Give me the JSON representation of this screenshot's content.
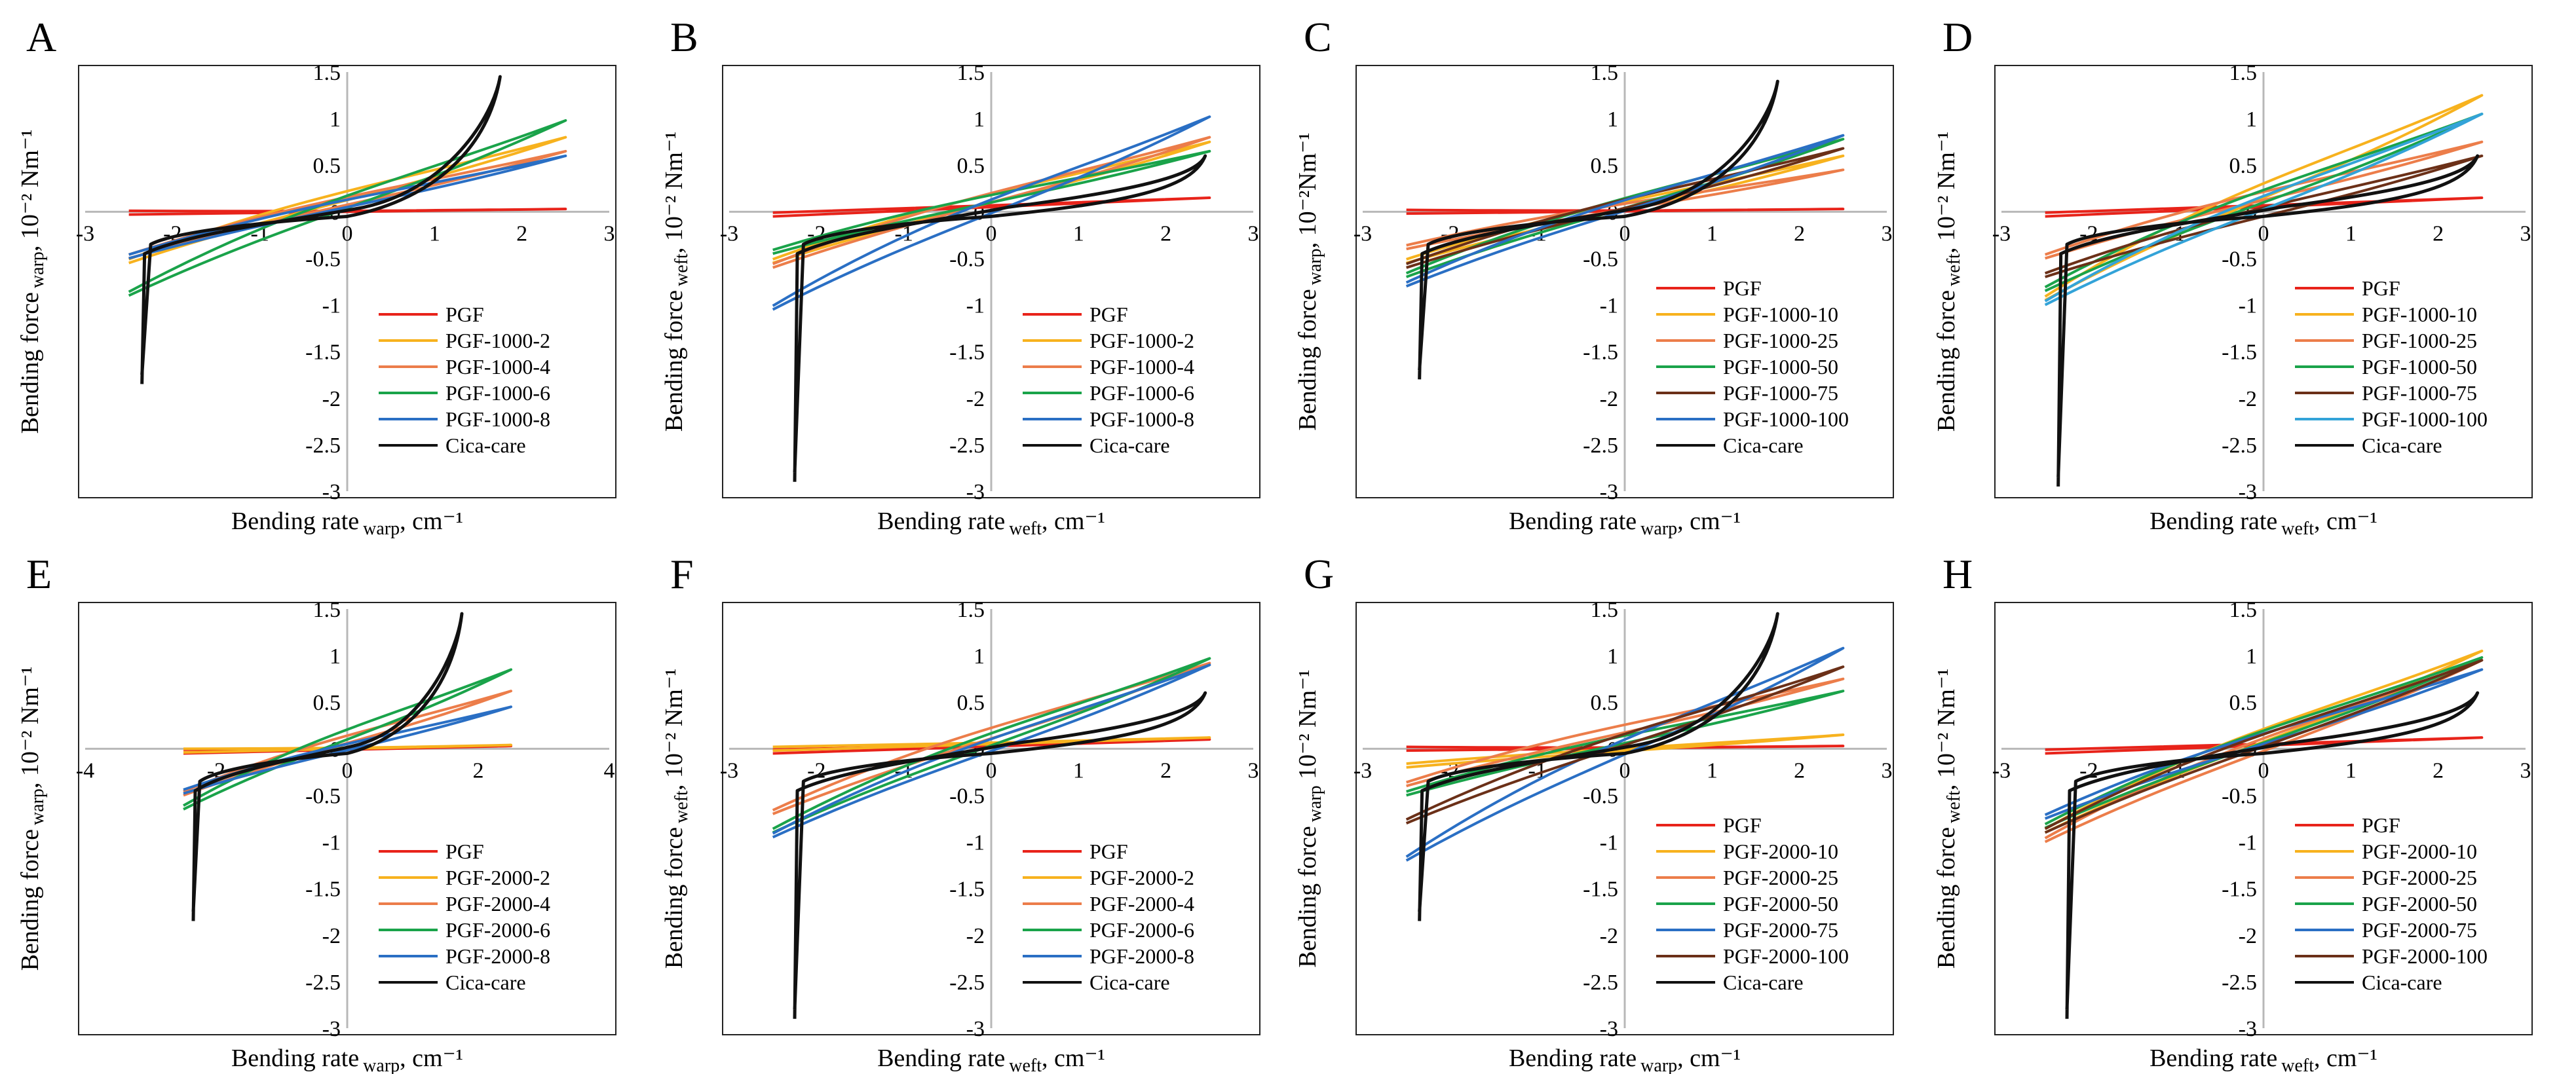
{
  "figure": {
    "note": ""
  },
  "colors": {
    "PGF": "#e8231a",
    "s2": "#f7b21e",
    "s3": "#ec7d4a",
    "s4": "#1aa34a",
    "s5": "#6b3018",
    "s6": "#2a6fc4",
    "s6b": "#33a3d8",
    "cica": "#111111",
    "axis": "#b8b8b8",
    "frame": "#222222"
  },
  "chart_data": [
    {
      "panel": "A",
      "type": "line",
      "xlabel_main": "Bending rate",
      "xlabel_sub": "warp",
      "xlabel_unit": ", cm⁻¹",
      "ylabel_main": "Bending force",
      "ylabel_sub": "warp",
      "ylabel_unit": ", 10⁻² Nm⁻¹",
      "xlim": [
        -3,
        3
      ],
      "ylim": [
        -3,
        1.5
      ],
      "x_ticks": [
        "-3",
        "-2",
        "-1",
        "0",
        "1",
        "2",
        "3"
      ],
      "y_ticks": [
        "1.5",
        "1",
        "0.5",
        "0",
        "-0.5",
        "-1",
        "-1.5",
        "-2",
        "-2.5",
        "-3"
      ],
      "series": [
        {
          "name": "PGF",
          "color_key": "PGF",
          "shape": "lin",
          "p": [
            -2.5,
            -0.03,
            2.5,
            0.03
          ]
        },
        {
          "name": "PGF-1000-2",
          "color_key": "s2",
          "shape": "lin",
          "p": [
            -2.5,
            -0.55,
            2.5,
            0.8
          ]
        },
        {
          "name": "PGF-1000-4",
          "color_key": "s3",
          "shape": "lin",
          "p": [
            -2.5,
            -0.5,
            2.5,
            0.65
          ]
        },
        {
          "name": "PGF-1000-6",
          "color_key": "s4",
          "shape": "lin",
          "p": [
            -2.5,
            -0.9,
            2.5,
            0.98
          ]
        },
        {
          "name": "PGF-1000-8",
          "color_key": "s6",
          "shape": "lin",
          "p": [
            -2.5,
            -0.5,
            2.5,
            0.6
          ]
        },
        {
          "name": "Cica-care",
          "color_key": "cica",
          "shape": "cica",
          "p": [
            -2.35,
            -1.85,
            1.75,
            1.45
          ]
        }
      ]
    },
    {
      "panel": "B",
      "type": "line",
      "xlabel_main": "Bending rate",
      "xlabel_sub": "weft",
      "xlabel_unit": ", cm⁻¹",
      "ylabel_main": "Bending force",
      "ylabel_sub": "weft",
      "ylabel_unit": ", 10⁻² Nm⁻¹",
      "xlim": [
        -3,
        3
      ],
      "ylim": [
        -3,
        1.5
      ],
      "x_ticks": [
        "-3",
        "-2",
        "-1",
        "0",
        "1",
        "2",
        "3"
      ],
      "y_ticks": [
        "1.5",
        "1",
        "0.5",
        "0",
        "-0.5",
        "-1",
        "-1.5",
        "-2",
        "-2.5",
        "-3"
      ],
      "series": [
        {
          "name": "PGF",
          "color_key": "PGF",
          "shape": "lin",
          "p": [
            -2.5,
            -0.05,
            2.5,
            0.15
          ]
        },
        {
          "name": "PGF-1000-2",
          "color_key": "s2",
          "shape": "lin",
          "p": [
            -2.5,
            -0.55,
            2.5,
            0.75
          ]
        },
        {
          "name": "PGF-1000-4",
          "color_key": "s3",
          "shape": "lin",
          "p": [
            -2.5,
            -0.6,
            2.5,
            0.8
          ]
        },
        {
          "name": "PGF-1000-6",
          "color_key": "s4",
          "shape": "lin",
          "p": [
            -2.5,
            -0.45,
            2.5,
            0.65
          ]
        },
        {
          "name": "PGF-1000-8",
          "color_key": "s6",
          "shape": "lin",
          "p": [
            -2.5,
            -1.05,
            2.5,
            1.02
          ]
        },
        {
          "name": "Cica-care",
          "color_key": "cica",
          "shape": "cica",
          "p": [
            -2.25,
            -2.9,
            2.45,
            0.6
          ]
        }
      ]
    },
    {
      "panel": "C",
      "type": "line",
      "xlabel_main": "Bending rate",
      "xlabel_sub": "warp",
      "xlabel_unit": ", cm⁻¹",
      "ylabel_main": "Bending force",
      "ylabel_sub": "warp",
      "ylabel_unit": ", 10⁻²Nm⁻¹",
      "xlim": [
        -3,
        3
      ],
      "ylim": [
        -3,
        1.5
      ],
      "x_ticks": [
        "-3",
        "-2",
        "-1",
        "0",
        "1",
        "2",
        "3"
      ],
      "y_ticks": [
        "1.5",
        "1",
        "0.5",
        "0",
        "-0.5",
        "-1",
        "-1.5",
        "-2",
        "-2.5",
        "-3"
      ],
      "series": [
        {
          "name": "PGF",
          "color_key": "PGF",
          "shape": "lin",
          "p": [
            -2.5,
            -0.02,
            2.5,
            0.03
          ]
        },
        {
          "name": "PGF-1000-10",
          "color_key": "s2",
          "shape": "lin",
          "p": [
            -2.5,
            -0.55,
            2.5,
            0.6
          ]
        },
        {
          "name": "PGF-1000-25",
          "color_key": "s3",
          "shape": "lin",
          "p": [
            -2.5,
            -0.4,
            2.5,
            0.45
          ]
        },
        {
          "name": "PGF-1000-50",
          "color_key": "s4",
          "shape": "lin",
          "p": [
            -2.5,
            -0.7,
            2.5,
            0.78
          ]
        },
        {
          "name": "PGF-1000-75",
          "color_key": "s5",
          "shape": "lin",
          "p": [
            -2.5,
            -0.6,
            2.5,
            0.68
          ]
        },
        {
          "name": "PGF-1000-100",
          "color_key": "s6",
          "shape": "lin",
          "p": [
            -2.5,
            -0.8,
            2.5,
            0.82
          ]
        },
        {
          "name": "Cica-care",
          "color_key": "cica",
          "shape": "cica",
          "p": [
            -2.35,
            -1.8,
            1.75,
            1.4
          ]
        }
      ]
    },
    {
      "panel": "D",
      "type": "line",
      "xlabel_main": "Bending rate",
      "xlabel_sub": "weft",
      "xlabel_unit": ", cm⁻¹",
      "ylabel_main": "Bending force",
      "ylabel_sub": "weft",
      "ylabel_unit": ", 10⁻² Nm⁻¹",
      "xlim": [
        -3,
        3
      ],
      "ylim": [
        -3,
        1.5
      ],
      "x_ticks": [
        "-3",
        "-2",
        "-1",
        "0",
        "1",
        "2",
        "3"
      ],
      "y_ticks": [
        "1.5",
        "1",
        "0.5",
        "0",
        "-0.5",
        "-1",
        "-1.5",
        "-2",
        "-2.5",
        "-3"
      ],
      "series": [
        {
          "name": "PGF",
          "color_key": "PGF",
          "shape": "lin",
          "p": [
            -2.5,
            -0.05,
            2.5,
            0.15
          ]
        },
        {
          "name": "PGF-1000-10",
          "color_key": "s2",
          "shape": "lin",
          "p": [
            -2.5,
            -0.95,
            2.5,
            1.25
          ]
        },
        {
          "name": "PGF-1000-25",
          "color_key": "s3",
          "shape": "lin",
          "p": [
            -2.5,
            -0.5,
            2.5,
            0.75
          ]
        },
        {
          "name": "PGF-1000-50",
          "color_key": "s4",
          "shape": "lin",
          "p": [
            -2.5,
            -0.85,
            2.5,
            1.05
          ]
        },
        {
          "name": "PGF-1000-75",
          "color_key": "s5",
          "shape": "lin",
          "p": [
            -2.5,
            -0.7,
            2.5,
            0.6
          ]
        },
        {
          "name": "PGF-1000-100",
          "color_key": "s6b",
          "shape": "lin",
          "p": [
            -2.5,
            -1.0,
            2.5,
            1.05
          ]
        },
        {
          "name": "Cica-care",
          "color_key": "cica",
          "shape": "cica",
          "p": [
            -2.35,
            -2.95,
            2.45,
            0.6
          ]
        }
      ]
    },
    {
      "panel": "E",
      "type": "line",
      "xlabel_main": "Bending rate",
      "xlabel_sub": "warp",
      "xlabel_unit": ", cm⁻¹",
      "ylabel_main": "Bending force",
      "ylabel_sub": "warp",
      "ylabel_unit": ", 10⁻² Nm⁻¹",
      "xlim": [
        -4,
        4
      ],
      "ylim": [
        -3,
        1.5
      ],
      "x_ticks": [
        "-4",
        "-2",
        "0",
        "2",
        "4"
      ],
      "y_ticks": [
        "1.5",
        "1",
        "0.5",
        "0",
        "-0.5",
        "-1",
        "-1.5",
        "-2",
        "-2.5",
        "-3"
      ],
      "series": [
        {
          "name": "PGF",
          "color_key": "PGF",
          "shape": "lin",
          "p": [
            -2.5,
            -0.05,
            2.5,
            0.03
          ]
        },
        {
          "name": "PGF-2000-2",
          "color_key": "s2",
          "shape": "lin",
          "p": [
            -2.5,
            -0.04,
            2.5,
            0.04
          ]
        },
        {
          "name": "PGF-2000-4",
          "color_key": "s3",
          "shape": "lin",
          "p": [
            -2.5,
            -0.5,
            2.5,
            0.62
          ]
        },
        {
          "name": "PGF-2000-6",
          "color_key": "s4",
          "shape": "lin",
          "p": [
            -2.5,
            -0.65,
            2.5,
            0.85
          ]
        },
        {
          "name": "PGF-2000-8",
          "color_key": "s6",
          "shape": "lin",
          "p": [
            -2.5,
            -0.48,
            2.5,
            0.45
          ]
        },
        {
          "name": "Cica-care",
          "color_key": "cica",
          "shape": "cica",
          "p": [
            -2.35,
            -1.85,
            1.75,
            1.45
          ]
        }
      ]
    },
    {
      "panel": "F",
      "type": "line",
      "xlabel_main": "Bending rate",
      "xlabel_sub": "weft",
      "xlabel_unit": ", cm⁻¹",
      "ylabel_main": "Bending force",
      "ylabel_sub": "weft",
      "ylabel_unit": ", 10⁻² Nm⁻¹",
      "xlim": [
        -3,
        3
      ],
      "ylim": [
        -3,
        1.5
      ],
      "x_ticks": [
        "-3",
        "-2",
        "-1",
        "0",
        "1",
        "2",
        "3"
      ],
      "y_ticks": [
        "1.5",
        "1",
        "0.5",
        "0",
        "-0.5",
        "-1",
        "-1.5",
        "-2",
        "-2.5",
        "-3"
      ],
      "series": [
        {
          "name": "PGF",
          "color_key": "PGF",
          "shape": "lin",
          "p": [
            -2.5,
            -0.05,
            2.5,
            0.1
          ]
        },
        {
          "name": "PGF-2000-2",
          "color_key": "s2",
          "shape": "lin",
          "p": [
            -2.5,
            -0.02,
            2.5,
            0.12
          ]
        },
        {
          "name": "PGF-2000-4",
          "color_key": "s3",
          "shape": "lin",
          "p": [
            -2.5,
            -0.7,
            2.5,
            0.92
          ]
        },
        {
          "name": "PGF-2000-6",
          "color_key": "s4",
          "shape": "lin",
          "p": [
            -2.5,
            -0.9,
            2.5,
            0.97
          ]
        },
        {
          "name": "PGF-2000-8",
          "color_key": "s6",
          "shape": "lin",
          "p": [
            -2.5,
            -0.95,
            2.5,
            0.9
          ]
        },
        {
          "name": "Cica-care",
          "color_key": "cica",
          "shape": "cica",
          "p": [
            -2.25,
            -2.9,
            2.45,
            0.6
          ]
        }
      ]
    },
    {
      "panel": "G",
      "type": "line",
      "xlabel_main": "Bending rate",
      "xlabel_sub": "warp",
      "xlabel_unit": ", cm⁻¹",
      "ylabel_main": "Bending force",
      "ylabel_sub": "warp",
      "ylabel_unit": " 10⁻² Nm⁻¹",
      "xlim": [
        -3,
        3
      ],
      "ylim": [
        -3,
        1.5
      ],
      "x_ticks": [
        "-3",
        "-2",
        "-1",
        "0",
        "1",
        "2",
        "3"
      ],
      "y_ticks": [
        "1.5",
        "1",
        "0.5",
        "0",
        "-0.5",
        "-1",
        "-1.5",
        "-2",
        "-2.5",
        "-3"
      ],
      "series": [
        {
          "name": "PGF",
          "color_key": "PGF",
          "shape": "lin",
          "p": [
            -2.5,
            -0.02,
            2.5,
            0.03
          ]
        },
        {
          "name": "PGF-2000-10",
          "color_key": "s2",
          "shape": "lin",
          "p": [
            -2.5,
            -0.2,
            2.5,
            0.15
          ]
        },
        {
          "name": "PGF-2000-25",
          "color_key": "s3",
          "shape": "lin",
          "p": [
            -2.5,
            -0.4,
            2.5,
            0.75
          ]
        },
        {
          "name": "PGF-2000-50",
          "color_key": "s4",
          "shape": "lin",
          "p": [
            -2.5,
            -0.5,
            2.5,
            0.62
          ]
        },
        {
          "name": "PGF-2000-75",
          "color_key": "s6",
          "shape": "lin",
          "p": [
            -2.5,
            -1.2,
            2.5,
            1.08
          ]
        },
        {
          "name": "PGF-2000-100",
          "color_key": "s5",
          "shape": "lin",
          "p": [
            -2.5,
            -0.8,
            2.5,
            0.88
          ]
        },
        {
          "name": "Cica-care",
          "color_key": "cica",
          "shape": "cica",
          "p": [
            -2.35,
            -1.85,
            1.75,
            1.45
          ]
        }
      ]
    },
    {
      "panel": "H",
      "type": "line",
      "xlabel_main": "Bending rate",
      "xlabel_sub": "weft",
      "xlabel_unit": ", cm⁻¹",
      "ylabel_main": "Bending force",
      "ylabel_sub": "weft",
      "ylabel_unit": ", 10⁻² Nm⁻¹",
      "xlim": [
        -3,
        3
      ],
      "ylim": [
        -3,
        1.5
      ],
      "x_ticks": [
        "-3",
        "-2",
        "-1",
        "0",
        "1",
        "2",
        "3"
      ],
      "y_ticks": [
        "1.5",
        "1",
        "0.5",
        "0",
        "-0.5",
        "-1",
        "-1.5",
        "-2",
        "-2.5",
        "-3"
      ],
      "series": [
        {
          "name": "PGF",
          "color_key": "PGF",
          "shape": "lin",
          "p": [
            -2.5,
            -0.05,
            2.5,
            0.12
          ]
        },
        {
          "name": "PGF-2000-10",
          "color_key": "s2",
          "shape": "lin",
          "p": [
            -2.5,
            -0.9,
            2.5,
            1.05
          ]
        },
        {
          "name": "PGF-2000-25",
          "color_key": "s3",
          "shape": "lin",
          "p": [
            -2.5,
            -1.0,
            2.5,
            0.95
          ]
        },
        {
          "name": "PGF-2000-50",
          "color_key": "s4",
          "shape": "lin",
          "p": [
            -2.5,
            -0.85,
            2.5,
            0.98
          ]
        },
        {
          "name": "PGF-2000-75",
          "color_key": "s6",
          "shape": "lin",
          "p": [
            -2.5,
            -0.75,
            2.5,
            0.85
          ]
        },
        {
          "name": "PGF-2000-100",
          "color_key": "s5",
          "shape": "lin",
          "p": [
            -2.5,
            -0.9,
            2.5,
            0.95
          ]
        },
        {
          "name": "Cica-care",
          "color_key": "cica",
          "shape": "cica",
          "p": [
            -2.25,
            -2.9,
            2.45,
            0.6
          ]
        }
      ]
    }
  ]
}
